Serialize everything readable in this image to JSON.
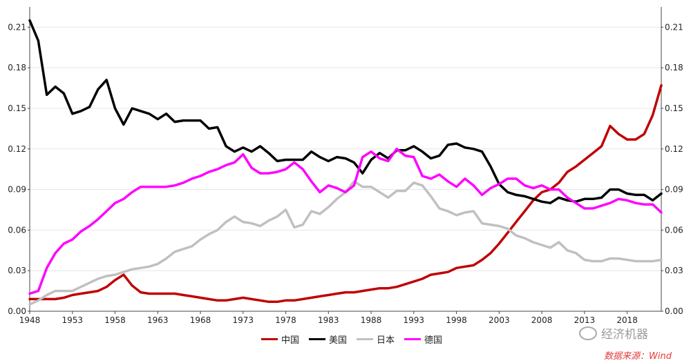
{
  "chart_data": {
    "type": "line",
    "title": "",
    "xlabel": "",
    "ylabel": "",
    "xlim": [
      1948,
      2022
    ],
    "ylim": [
      0,
      0.225
    ],
    "yticks": [
      "0.00",
      "0.03",
      "0.06",
      "0.09",
      "0.12",
      "0.15",
      "0.18",
      "0.21"
    ],
    "xticks": [
      "1948",
      "1953",
      "1958",
      "1963",
      "1968",
      "1973",
      "1978",
      "1983",
      "1988",
      "1993",
      "1998",
      "2003",
      "2008",
      "2013",
      "2018"
    ],
    "grid": true,
    "legend_position": "bottom",
    "x": [
      1948,
      1949,
      1950,
      1951,
      1952,
      1953,
      1954,
      1955,
      1956,
      1957,
      1958,
      1959,
      1960,
      1961,
      1962,
      1963,
      1964,
      1965,
      1966,
      1967,
      1968,
      1969,
      1970,
      1971,
      1972,
      1973,
      1974,
      1975,
      1976,
      1977,
      1978,
      1979,
      1980,
      1981,
      1982,
      1983,
      1984,
      1985,
      1986,
      1987,
      1988,
      1989,
      1990,
      1991,
      1992,
      1993,
      1994,
      1995,
      1996,
      1997,
      1998,
      1999,
      2000,
      2001,
      2002,
      2003,
      2004,
      2005,
      2006,
      2007,
      2008,
      2009,
      2010,
      2011,
      2012,
      2013,
      2014,
      2015,
      2016,
      2017,
      2018,
      2019,
      2020,
      2021,
      2022
    ],
    "series": [
      {
        "name": "中国",
        "color": "#c00000",
        "values": [
          0.009,
          0.009,
          0.009,
          0.009,
          0.01,
          0.012,
          0.013,
          0.014,
          0.015,
          0.018,
          0.023,
          0.027,
          0.019,
          0.014,
          0.013,
          0.013,
          0.013,
          0.013,
          0.012,
          0.011,
          0.01,
          0.009,
          0.008,
          0.008,
          0.009,
          0.01,
          0.009,
          0.008,
          0.007,
          0.007,
          0.008,
          0.008,
          0.009,
          0.01,
          0.011,
          0.012,
          0.013,
          0.014,
          0.014,
          0.015,
          0.016,
          0.017,
          0.017,
          0.018,
          0.02,
          0.022,
          0.024,
          0.027,
          0.028,
          0.029,
          0.032,
          0.033,
          0.034,
          0.038,
          0.043,
          0.05,
          0.058,
          0.066,
          0.074,
          0.082,
          0.088,
          0.09,
          0.095,
          0.103,
          0.107,
          0.112,
          0.117,
          0.122,
          0.137,
          0.131,
          0.127,
          0.127,
          0.131,
          0.145,
          0.167
        ]
      },
      {
        "name": "美国",
        "color": "#000000",
        "values": [
          0.215,
          0.2,
          0.16,
          0.166,
          0.161,
          0.146,
          0.148,
          0.151,
          0.164,
          0.171,
          0.15,
          0.138,
          0.15,
          0.148,
          0.146,
          0.142,
          0.146,
          0.14,
          0.141,
          0.141,
          0.141,
          0.135,
          0.136,
          0.122,
          0.118,
          0.121,
          0.118,
          0.122,
          0.117,
          0.111,
          0.112,
          0.112,
          0.112,
          0.118,
          0.114,
          0.111,
          0.114,
          0.113,
          0.11,
          0.102,
          0.112,
          0.117,
          0.113,
          0.119,
          0.119,
          0.122,
          0.118,
          0.113,
          0.115,
          0.123,
          0.124,
          0.121,
          0.12,
          0.118,
          0.107,
          0.094,
          0.088,
          0.086,
          0.085,
          0.083,
          0.081,
          0.08,
          0.084,
          0.082,
          0.081,
          0.083,
          0.083,
          0.084,
          0.09,
          0.09,
          0.087,
          0.086,
          0.086,
          0.082,
          0.087
        ]
      },
      {
        "name": "日本",
        "color": "#c0c0c0",
        "values": [
          0.005,
          0.008,
          0.012,
          0.015,
          0.015,
          0.015,
          0.018,
          0.021,
          0.024,
          0.026,
          0.027,
          0.029,
          0.031,
          0.032,
          0.033,
          0.035,
          0.039,
          0.044,
          0.046,
          0.048,
          0.053,
          0.057,
          0.06,
          0.066,
          0.07,
          0.066,
          0.065,
          0.063,
          0.067,
          0.07,
          0.075,
          0.062,
          0.064,
          0.074,
          0.072,
          0.077,
          0.083,
          0.088,
          0.096,
          0.092,
          0.092,
          0.088,
          0.084,
          0.089,
          0.089,
          0.095,
          0.093,
          0.085,
          0.076,
          0.074,
          0.071,
          0.073,
          0.074,
          0.065,
          0.064,
          0.063,
          0.061,
          0.056,
          0.054,
          0.051,
          0.049,
          0.047,
          0.051,
          0.045,
          0.043,
          0.038,
          0.037,
          0.037,
          0.039,
          0.039,
          0.038,
          0.037,
          0.037,
          0.037,
          0.038
        ]
      },
      {
        "name": "德国",
        "color": "#ff00ff",
        "values": [
          0.013,
          0.015,
          0.032,
          0.043,
          0.05,
          0.053,
          0.059,
          0.063,
          0.068,
          0.074,
          0.08,
          0.083,
          0.088,
          0.092,
          0.092,
          0.092,
          0.092,
          0.093,
          0.095,
          0.098,
          0.1,
          0.103,
          0.105,
          0.108,
          0.11,
          0.116,
          0.106,
          0.102,
          0.102,
          0.103,
          0.105,
          0.11,
          0.105,
          0.096,
          0.088,
          0.093,
          0.091,
          0.088,
          0.093,
          0.114,
          0.118,
          0.113,
          0.111,
          0.12,
          0.115,
          0.114,
          0.1,
          0.098,
          0.101,
          0.096,
          0.092,
          0.098,
          0.093,
          0.086,
          0.091,
          0.094,
          0.098,
          0.098,
          0.093,
          0.091,
          0.093,
          0.09,
          0.09,
          0.084,
          0.08,
          0.076,
          0.076,
          0.078,
          0.08,
          0.083,
          0.082,
          0.08,
          0.079,
          0.079,
          0.073
        ]
      }
    ]
  },
  "watermark": {
    "text": "经济机器",
    "icon": "wechat-icon"
  },
  "source": "数据来源：Wind"
}
